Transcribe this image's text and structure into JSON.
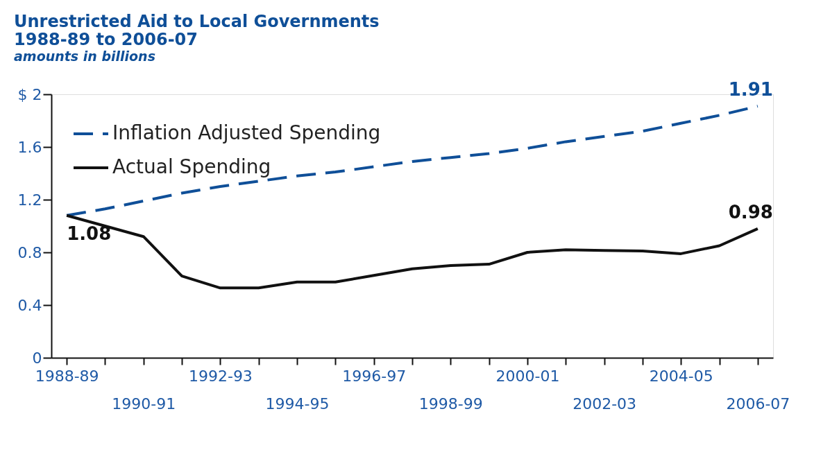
{
  "chart_data": {
    "type": "line",
    "title": "Unrestricted Aid to Local Governments\n1988-89 to 2006-07",
    "subtitle": "amounts in billions",
    "categories": [
      "1988-89",
      null,
      "1990-91",
      null,
      "1992-93",
      null,
      "1994-95",
      null,
      "1996-97",
      null,
      "1998-99",
      null,
      "2000-01",
      null,
      "2002-03",
      null,
      "2004-05",
      null,
      "2006-07"
    ],
    "series": [
      {
        "name": "Inflation Adjusted Spending",
        "color": "#0f4f98",
        "line_style": "dashed",
        "values": [
          1.08,
          1.13,
          1.19,
          1.25,
          1.3,
          1.34,
          1.38,
          1.41,
          1.45,
          1.49,
          1.52,
          1.55,
          1.59,
          1.64,
          1.68,
          1.72,
          1.78,
          1.84,
          1.91
        ],
        "value_labels": [
          null,
          null,
          null,
          null,
          null,
          null,
          null,
          null,
          null,
          null,
          null,
          null,
          null,
          null,
          null,
          null,
          null,
          null,
          "1.91"
        ]
      },
      {
        "name": "Actual Spending",
        "color": "#111111",
        "line_style": "solid",
        "values": [
          1.08,
          1.0,
          0.92,
          0.62,
          0.53,
          0.53,
          0.575,
          0.575,
          0.625,
          0.675,
          0.7,
          0.71,
          0.8,
          0.82,
          0.815,
          0.81,
          0.79,
          0.85,
          0.98
        ],
        "value_labels": [
          "1.08",
          null,
          null,
          null,
          null,
          null,
          null,
          null,
          null,
          null,
          null,
          null,
          null,
          null,
          null,
          null,
          null,
          null,
          "0.98"
        ]
      }
    ],
    "ylim": [
      0,
      2
    ],
    "yticks": [
      {
        "value": 0,
        "label": "0"
      },
      0.4,
      0.8,
      1.2,
      1.6,
      {
        "value": 2,
        "label": "$ 2"
      }
    ],
    "grid": false,
    "legend": "top left",
    "marker": "none"
  }
}
